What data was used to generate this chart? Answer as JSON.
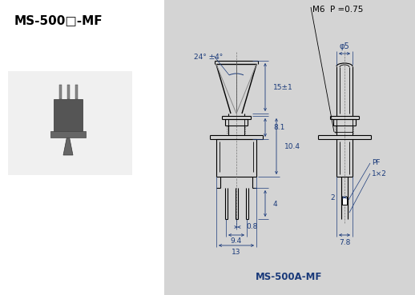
{
  "title": "MS-500A-MF",
  "header_title": "MS-500□-MF",
  "bg_color_left": "#ffffff",
  "bg_color_right": "#d4d4d4",
  "line_color": "#000000",
  "dim_color": "#1a3a7a",
  "annotations": {
    "M6_P075": "M6  P =0.75",
    "phi5": "φ5",
    "angle": "24° ±4°",
    "dim_15": "15±1",
    "dim_81": "8.1",
    "dim_104": "10.4",
    "dim_4": "4",
    "dim_08": "0.8",
    "dim_94": "9.4",
    "dim_13": "13",
    "dim_2": "2",
    "dim_78": "7.8",
    "PF": "PF",
    "oneXtwo": "1×2"
  }
}
